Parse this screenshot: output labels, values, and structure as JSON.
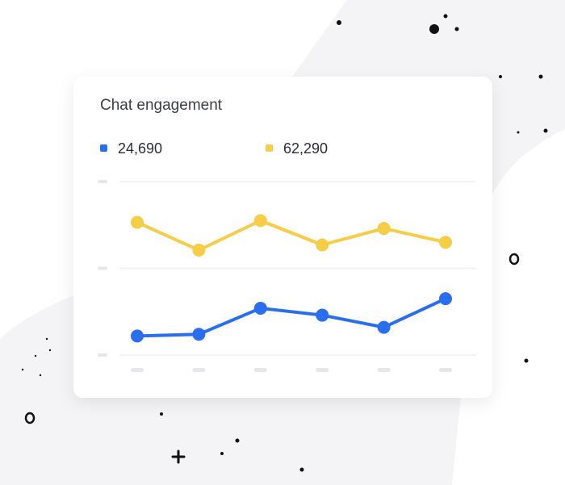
{
  "chart_data": {
    "type": "line",
    "title": "Chat engagement",
    "categories": [
      null,
      null,
      null,
      null,
      null,
      null
    ],
    "series": [
      {
        "name": "24,690",
        "color": "#2a6ef0",
        "values": [
          0.22,
          0.24,
          0.54,
          0.46,
          0.32,
          0.65
        ]
      },
      {
        "name": "62,290",
        "color": "#f5cd47",
        "values": [
          1.53,
          1.21,
          1.55,
          1.27,
          1.46,
          1.3
        ]
      }
    ],
    "ylim": [
      0,
      2
    ],
    "yticks": [
      0,
      1,
      2
    ],
    "grid": true
  }
}
